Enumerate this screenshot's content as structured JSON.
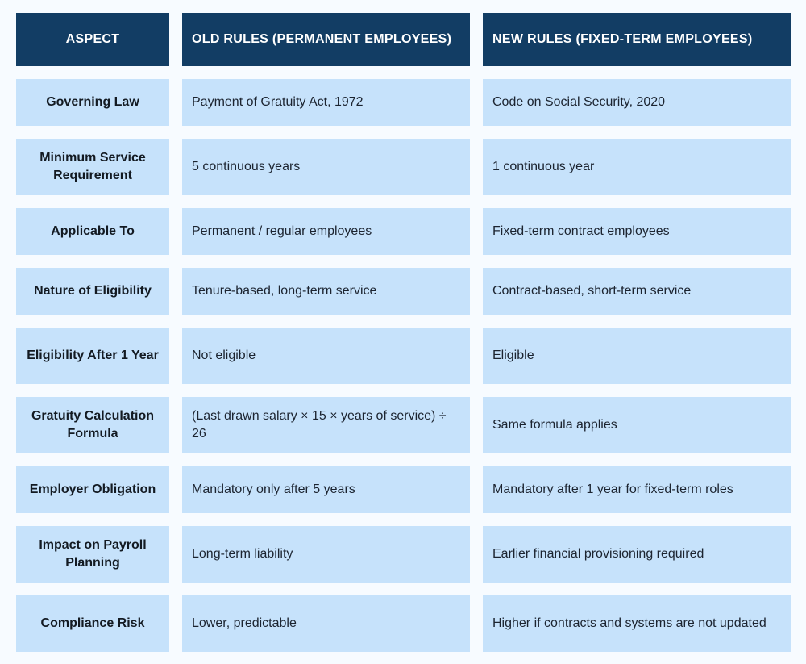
{
  "headers": {
    "aspect": "ASPECT",
    "old_rules": "OLD RULES (PERMANENT EMPLOYEES)",
    "new_rules": "NEW RULES (FIXED-TERM EMPLOYEES)"
  },
  "rows": [
    {
      "aspect": "Governing Law",
      "old": "Payment of Gratuity Act, 1972",
      "new": "Code on Social Security, 2020"
    },
    {
      "aspect": "Minimum Service Requirement",
      "old": "5 continuous years",
      "new": "1 continuous year"
    },
    {
      "aspect": "Applicable To",
      "old": "Permanent / regular employees",
      "new": "Fixed-term contract employees"
    },
    {
      "aspect": "Nature of Eligibility",
      "old": "Tenure-based, long-term service",
      "new": "Contract-based, short-term service"
    },
    {
      "aspect": "Eligibility After 1 Year",
      "old": "Not eligible",
      "new": "Eligible"
    },
    {
      "aspect": "Gratuity Calculation Formula",
      "old": "(Last drawn salary × 15 × years of service) ÷ 26",
      "new": "Same formula applies"
    },
    {
      "aspect": "Employer Obligation",
      "old": "Mandatory only after 5 years",
      "new": "Mandatory after 1 year for fixed-term roles"
    },
    {
      "aspect": "Impact on Payroll Planning",
      "old": "Long-term liability",
      "new": "Earlier financial provisioning required"
    },
    {
      "aspect": "Compliance Risk",
      "old": "Lower, predictable",
      "new": "Higher if contracts and systems are not updated"
    }
  ],
  "colors": {
    "header_bg": "#123d64",
    "cell_bg": "#c6e2fb",
    "page_bg": "#f7fbff"
  }
}
